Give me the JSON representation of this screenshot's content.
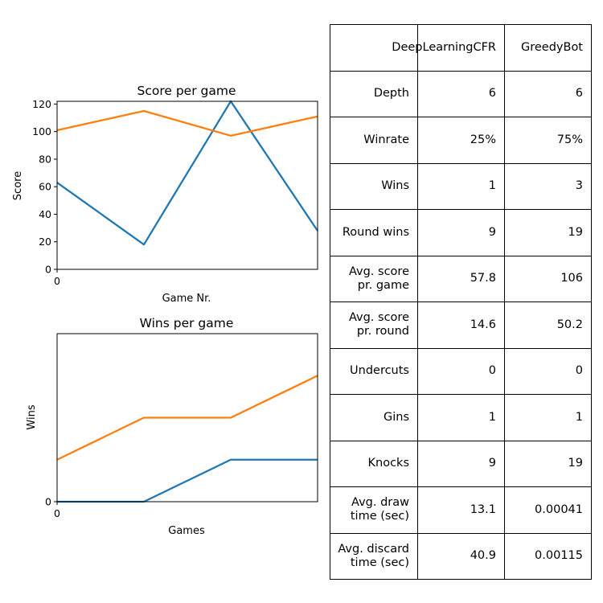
{
  "charts": {
    "score_chart": {
      "title": "Score per game",
      "xlabel": "Game Nr.",
      "ylabel": "Score",
      "x_tick_labels": [
        "0"
      ],
      "y_tick_labels": [
        "0",
        "20",
        "40",
        "60",
        "80",
        "100",
        "120"
      ],
      "colors": [
        "#1f77b4",
        "#ff7f0e"
      ]
    },
    "wins_chart": {
      "title": "Wins per game",
      "xlabel": "Games",
      "ylabel": "Wins",
      "x_tick_labels": [
        "0"
      ],
      "y_tick_labels": [
        "0"
      ],
      "colors": [
        "#1f77b4",
        "#ff7f0e"
      ]
    }
  },
  "chart_data": [
    {
      "type": "line",
      "title": "Score per game",
      "xlabel": "Game Nr.",
      "ylabel": "Score",
      "x": [
        0,
        1,
        2,
        3
      ],
      "xlim": [
        0,
        3
      ],
      "ylim": [
        0,
        122
      ],
      "grid": false,
      "series": [
        {
          "values": [
            63,
            18,
            122,
            28
          ],
          "color": "#1f77b4"
        },
        {
          "values": [
            101,
            115,
            97,
            111
          ],
          "color": "#ff7f0e"
        }
      ]
    },
    {
      "type": "line",
      "title": "Wins per game",
      "xlabel": "Games",
      "ylabel": "Wins",
      "x": [
        0,
        1,
        2,
        3
      ],
      "xlim": [
        0,
        3
      ],
      "ylim": [
        0,
        4
      ],
      "grid": false,
      "series": [
        {
          "values": [
            0,
            0,
            1,
            1
          ],
          "color": "#1f77b4"
        },
        {
          "values": [
            1,
            2,
            2,
            3
          ],
          "color": "#ff7f0e"
        }
      ]
    },
    {
      "type": "table",
      "columns": [
        "",
        "DeepLearningCFR",
        "GreedyBot"
      ],
      "rows": [
        [
          "Depth",
          "6",
          "6"
        ],
        [
          "Winrate",
          "25%",
          "75%"
        ],
        [
          "Wins",
          "1",
          "3"
        ],
        [
          "Round wins",
          "9",
          "19"
        ],
        [
          "Avg. score\npr. game",
          "57.8",
          "106"
        ],
        [
          "Avg. score\npr. round",
          "14.6",
          "50.2"
        ],
        [
          "Undercuts",
          "0",
          "0"
        ],
        [
          "Gins",
          "1",
          "1"
        ],
        [
          "Knocks",
          "9",
          "19"
        ],
        [
          "Avg. draw\ntime (sec)",
          "13.1",
          "0.00041"
        ],
        [
          "Avg. discard\ntime (sec)",
          "40.9",
          "0.00115"
        ]
      ]
    }
  ]
}
